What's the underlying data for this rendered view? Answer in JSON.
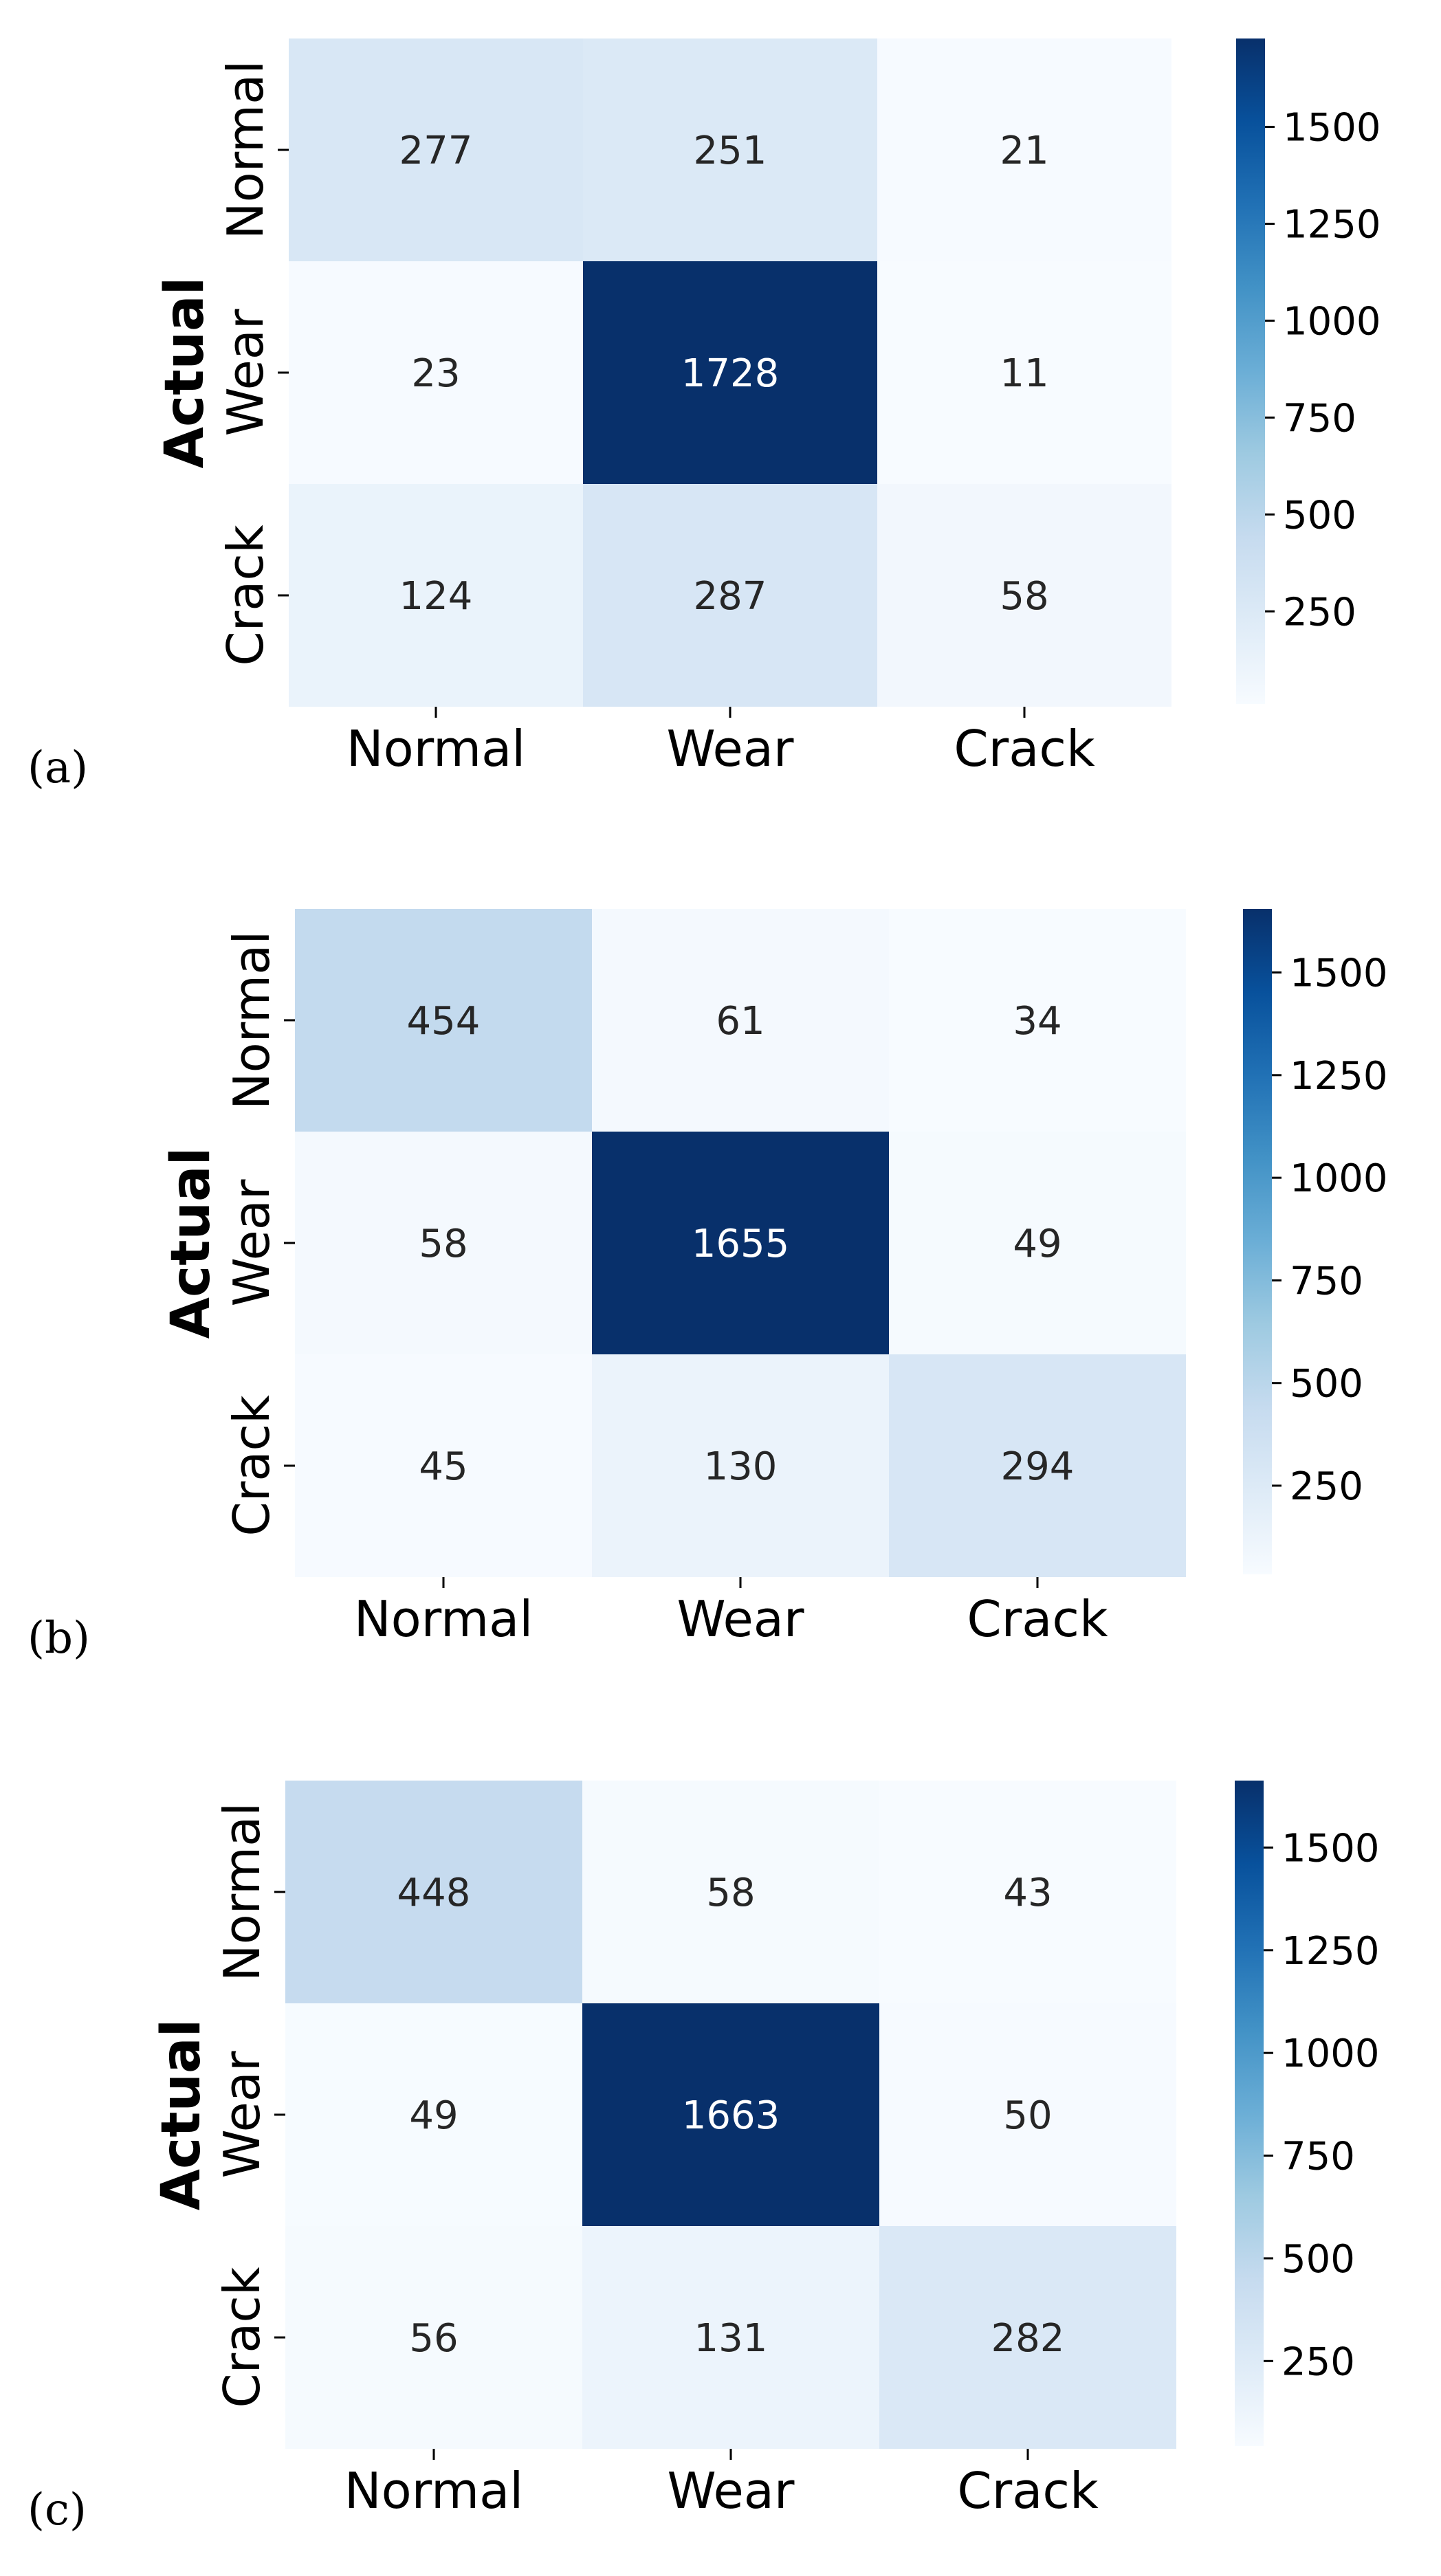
{
  "chart_data": [
    {
      "type": "heatmap",
      "panel_label": "(a)",
      "ylabel": "Actual",
      "xlabel": "",
      "x_categories": [
        "Normal",
        "Wear",
        "Crack"
      ],
      "y_categories": [
        "Normal",
        "Wear",
        "Crack"
      ],
      "values": [
        [
          277,
          251,
          21
        ],
        [
          23,
          1728,
          11
        ],
        [
          124,
          287,
          58
        ]
      ],
      "colormap": "Blues",
      "vmin": 11,
      "vmax": 1728,
      "colorbar_ticks": [
        250,
        500,
        750,
        1000,
        1250,
        1500
      ]
    },
    {
      "type": "heatmap",
      "panel_label": "(b)",
      "ylabel": "Actual",
      "xlabel": "",
      "x_categories": [
        "Normal",
        "Wear",
        "Crack"
      ],
      "y_categories": [
        "Normal",
        "Wear",
        "Crack"
      ],
      "values": [
        [
          454,
          61,
          34
        ],
        [
          58,
          1655,
          49
        ],
        [
          45,
          130,
          294
        ]
      ],
      "colormap": "Blues",
      "vmin": 34,
      "vmax": 1655,
      "colorbar_ticks": [
        250,
        500,
        750,
        1000,
        1250,
        1500
      ]
    },
    {
      "type": "heatmap",
      "panel_label": "(c)",
      "ylabel": "Actual",
      "xlabel": "",
      "x_categories": [
        "Normal",
        "Wear",
        "Crack"
      ],
      "y_categories": [
        "Normal",
        "Wear",
        "Crack"
      ],
      "values": [
        [
          448,
          58,
          43
        ],
        [
          49,
          1663,
          50
        ],
        [
          56,
          131,
          282
        ]
      ],
      "colormap": "Blues",
      "vmin": 43,
      "vmax": 1663,
      "colorbar_ticks": [
        250,
        500,
        750,
        1000,
        1250,
        1500
      ]
    }
  ]
}
